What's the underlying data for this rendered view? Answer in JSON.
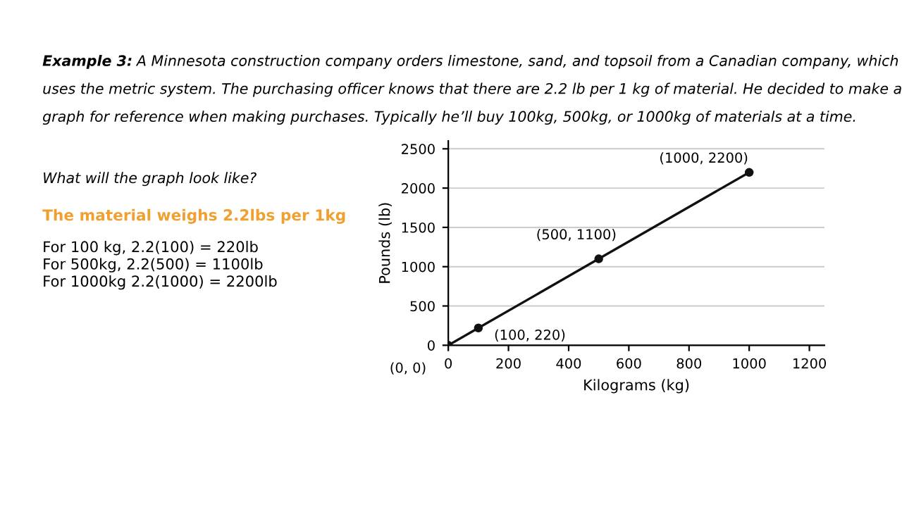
{
  "chart_data": {
    "type": "line",
    "x": [
      0,
      100,
      500,
      1000
    ],
    "series": [
      {
        "color": "#111111",
        "values": [
          0,
          220,
          1100,
          2200
        ]
      }
    ],
    "marker": "circle",
    "line_style": "solid",
    "xlabel": "Kilograms (kg)",
    "ylabel": "Pounds (lb)",
    "xlim": [
      0,
      1250
    ],
    "ylim": [
      0,
      2600
    ],
    "xticks": [
      0,
      200,
      400,
      600,
      800,
      1000,
      1200
    ],
    "yticks": [
      0,
      500,
      1000,
      1500,
      2000,
      2500
    ],
    "grid": "y",
    "legend": false,
    "annotations": [
      "Example 3:",
      "A Minnesota construction company orders limestone, sand, and topsoil from a Canadian company, which\nuses the metric system. The purchasing officer knows that there are 2.2 lb per 1 kg of material. He decided to make a\ngraph for reference when making purchases. Typically he’ll buy 100kg, 500kg, or 1000kg of materials at a time.",
      "What will the graph look like?",
      "The material weighs 2.2lbs per 1kg",
      "For 100 kg, 2.2(100) = 220lb\nFor 500kg, 2.2(500) = 1100lb\nFor 1000kg 2.2(1000) = 2200lb",
      {
        "text": "(0, 0)",
        "x": 0,
        "y": 0
      },
      {
        "text": "(100, 220)",
        "x": 100,
        "y": 220
      },
      {
        "text": "(500, 1100)",
        "x": 500,
        "y": 1100
      },
      {
        "text": "(1000, 2200)",
        "x": 1000,
        "y": 2200
      }
    ]
  }
}
